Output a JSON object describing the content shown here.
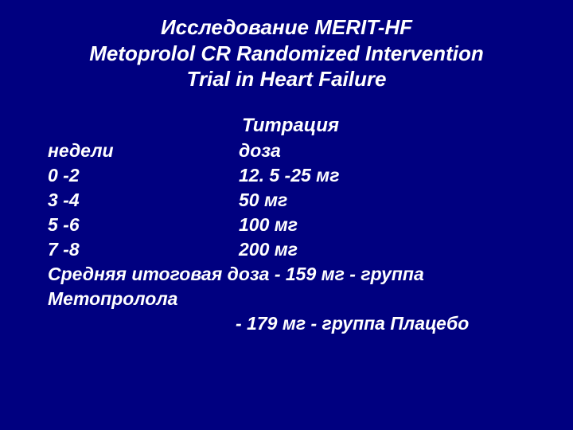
{
  "background_color": "#000080",
  "text_color": "#ffffff",
  "title": {
    "line1": "Исследование MERIT-HF",
    "line2": "Metoprolol CR Randomized Intervention",
    "line3": "Trial in Heart Failure",
    "fontsize": 26,
    "fontweight": "bold",
    "fontstyle": "italic",
    "align": "center"
  },
  "subtitle": "Титрация",
  "header": {
    "weeks": "недели",
    "dose": "доза"
  },
  "rows": [
    {
      "weeks": "0 -2",
      "dose": "12. 5 -25 мг"
    },
    {
      "weeks": "3 -4",
      "dose": "50 мг"
    },
    {
      "weeks": "5 -6",
      "dose": "100 мг"
    },
    {
      "weeks": "7 -8",
      "dose": "200 мг"
    }
  ],
  "footer": {
    "line1": "Средняя итоговая доза - 159 мг - группа Метопролола",
    "line2": "- 179 мг - группа Плацебо"
  },
  "body_fontsize": 23,
  "body_fontweight": "bold",
  "body_fontstyle": "italic"
}
